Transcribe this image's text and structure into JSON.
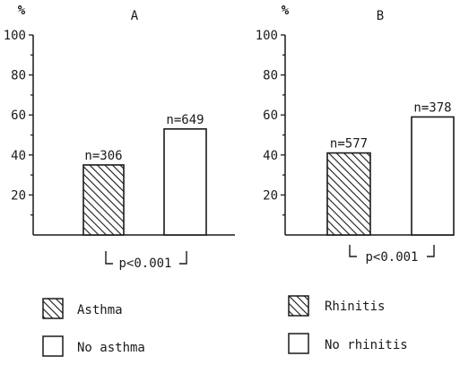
{
  "chart_data": [
    {
      "type": "bar",
      "title": "A",
      "ylabel": "%",
      "ylim": [
        0,
        100
      ],
      "yticks": [
        20,
        40,
        60,
        80,
        100
      ],
      "categories": [
        "Asthma",
        "No asthma"
      ],
      "values": [
        35,
        53
      ],
      "data_labels": [
        "n=306",
        "n=649"
      ],
      "fills": [
        "hatch",
        "white"
      ],
      "pvalue_label": "p<0.001"
    },
    {
      "type": "bar",
      "title": "B",
      "ylabel": "%",
      "ylim": [
        0,
        100
      ],
      "yticks": [
        20,
        40,
        60,
        80,
        100
      ],
      "categories": [
        "Rhinitis",
        "No rhinitis"
      ],
      "values": [
        41,
        59
      ],
      "data_labels": [
        "n=577",
        "n=378"
      ],
      "fills": [
        "hatch",
        "white"
      ],
      "pvalue_label": "p<0.001"
    }
  ],
  "legend": [
    [
      {
        "label": "Asthma",
        "fill": "hatch"
      },
      {
        "label": "No asthma",
        "fill": "white"
      }
    ],
    [
      {
        "label": "Rhinitis",
        "fill": "hatch"
      },
      {
        "label": "No rhinitis",
        "fill": "white"
      }
    ]
  ],
  "colors": {
    "ink": "#1a1a1a",
    "background": "#ffffff"
  }
}
